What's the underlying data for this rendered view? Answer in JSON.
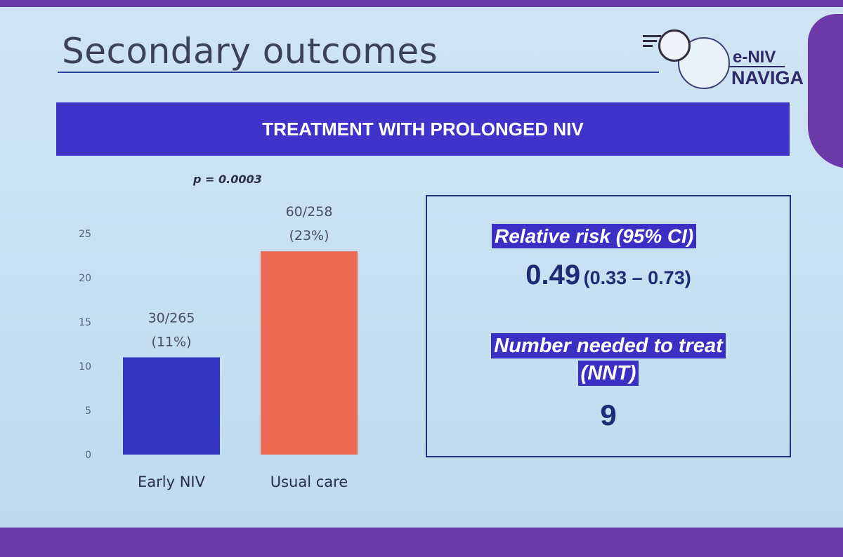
{
  "slide": {
    "title": "Secondary outcomes",
    "banner": "TREATMENT WITH PROLONGED NIV",
    "logo": {
      "line1": "e-NIV",
      "line2": "NAVIGA"
    }
  },
  "colors": {
    "banner": "#3e34c9",
    "early_bar": "#3334c0",
    "usual_bar": "#ee6a55",
    "text_dark": "#1f2b75"
  },
  "chart_data": {
    "type": "bar",
    "title": "",
    "p_value": "p = 0.0003",
    "categories": [
      "Early NIV",
      "Usual care"
    ],
    "values": [
      11,
      23
    ],
    "data_labels": [
      {
        "count": "30/265",
        "pct": "(11%)"
      },
      {
        "count": "60/258",
        "pct": "(23%)"
      }
    ],
    "yticks": [
      "0",
      "5",
      "10",
      "15",
      "20",
      "25"
    ],
    "ylim": [
      0,
      25
    ],
    "xlabel": "",
    "ylabel": "",
    "grid": false
  },
  "stats": {
    "rr_label": "Relative risk (95% CI)",
    "rr_value": "0.49",
    "rr_ci": "(0.33 – 0.73)",
    "nnt_label_line1": "Number needed to treat",
    "nnt_label_line2": "(NNT)",
    "nnt_value": "9"
  }
}
